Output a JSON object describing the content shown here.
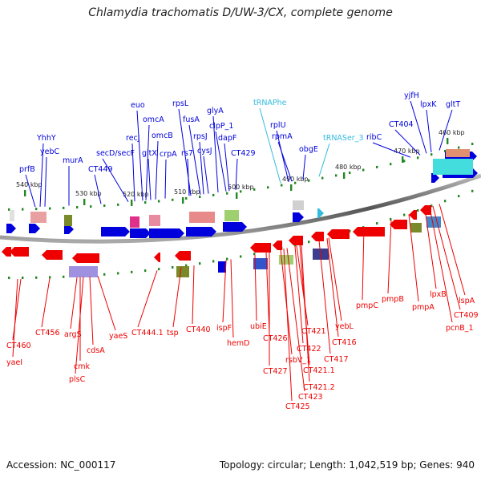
{
  "title": "Chlamydia trachomatis D/UW-3/CX, complete genome",
  "footer": {
    "accession": "Accession: NC_000117",
    "summary": "Topology: circular; Length: 1,042,519 bp; Genes: 940"
  },
  "colors": {
    "forward_gene": "#0000dd",
    "reverse_gene": "#ee0000",
    "trna": "#33bbdd",
    "backbone": "#888888",
    "tick": "#228822"
  },
  "kbp_ticks": [
    {
      "label": "540 kbp"
    },
    {
      "label": "530 kbp"
    },
    {
      "label": "520 kbp"
    },
    {
      "label": "510 kbp"
    },
    {
      "label": "500 kbp"
    },
    {
      "label": "490 kbp"
    },
    {
      "label": "480 kbp"
    },
    {
      "label": "470 kbp"
    },
    {
      "label": "460 kbp"
    }
  ],
  "forward_labels": [
    {
      "text": "prfB",
      "color": "blue"
    },
    {
      "text": "YhhY",
      "color": "blue"
    },
    {
      "text": "yebC",
      "color": "blue"
    },
    {
      "text": "murA",
      "color": "blue"
    },
    {
      "text": "CT449",
      "color": "blue"
    },
    {
      "text": "secD/secF",
      "color": "blue"
    },
    {
      "text": "recJ",
      "color": "blue"
    },
    {
      "text": "euo",
      "color": "blue"
    },
    {
      "text": "omcA",
      "color": "blue"
    },
    {
      "text": "gltX",
      "color": "blue"
    },
    {
      "text": "omcB",
      "color": "blue"
    },
    {
      "text": "crpA",
      "color": "blue"
    },
    {
      "text": "rs7",
      "color": "blue"
    },
    {
      "text": "rpsL",
      "color": "blue"
    },
    {
      "text": "fusA",
      "color": "blue"
    },
    {
      "text": "rpsJ",
      "color": "blue"
    },
    {
      "text": "cysJ",
      "color": "blue"
    },
    {
      "text": "glyA",
      "color": "blue"
    },
    {
      "text": "clpP_1",
      "color": "blue"
    },
    {
      "text": "dapF",
      "color": "blue"
    },
    {
      "text": "CT429",
      "color": "blue"
    },
    {
      "text": "tRNAPhe",
      "color": "cyan"
    },
    {
      "text": "rplU",
      "color": "blue"
    },
    {
      "text": "rpmA",
      "color": "blue"
    },
    {
      "text": "obgE",
      "color": "blue"
    },
    {
      "text": "tRNASer_3",
      "color": "cyan"
    },
    {
      "text": "ribC",
      "color": "blue"
    },
    {
      "text": "CT404",
      "color": "blue"
    },
    {
      "text": "yjfH",
      "color": "blue"
    },
    {
      "text": "lpxK",
      "color": "blue"
    },
    {
      "text": "gltT",
      "color": "blue"
    }
  ],
  "reverse_labels": [
    {
      "text": "CT460"
    },
    {
      "text": "yaeI"
    },
    {
      "text": "CT456"
    },
    {
      "text": "argS"
    },
    {
      "text": "cmk"
    },
    {
      "text": "plsC"
    },
    {
      "text": "cdsA"
    },
    {
      "text": "yaeS"
    },
    {
      "text": "CT444.1"
    },
    {
      "text": "tsp"
    },
    {
      "text": "CT440"
    },
    {
      "text": "ispF"
    },
    {
      "text": "hemD"
    },
    {
      "text": "ubiE"
    },
    {
      "text": "CT426"
    },
    {
      "text": "CT427"
    },
    {
      "text": "rsbV_1"
    },
    {
      "text": "CT425"
    },
    {
      "text": "CT423"
    },
    {
      "text": "CT422"
    },
    {
      "text": "CT421"
    },
    {
      "text": "CT421.1"
    },
    {
      "text": "CT421.2"
    },
    {
      "text": "CT417"
    },
    {
      "text": "CT416"
    },
    {
      "text": "yebL"
    },
    {
      "text": "pmpC"
    },
    {
      "text": "pmpB"
    },
    {
      "text": "pmpA"
    },
    {
      "text": "lpxB"
    },
    {
      "text": "lspA"
    },
    {
      "text": "CT409"
    },
    {
      "text": "pcnB_1"
    }
  ]
}
